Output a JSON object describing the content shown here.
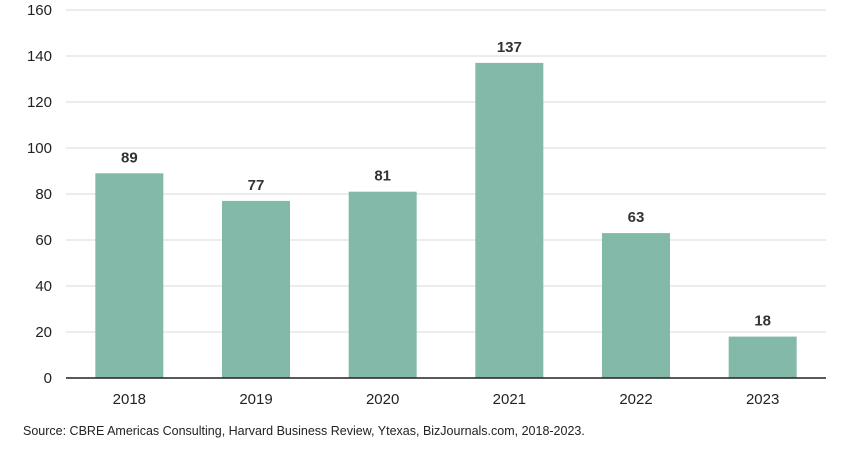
{
  "chart_data": {
    "type": "bar",
    "categories": [
      "2018",
      "2019",
      "2020",
      "2021",
      "2022",
      "2023"
    ],
    "values": [
      89,
      77,
      81,
      137,
      63,
      18
    ],
    "data_labels": [
      "89",
      "77",
      "81",
      "137",
      "63",
      "18"
    ],
    "title": "",
    "xlabel": "",
    "ylabel": "",
    "ylim": [
      0,
      160
    ],
    "yticks": [
      "0",
      "20",
      "40",
      "60",
      "80",
      "100",
      "120",
      "140",
      "160"
    ],
    "grid": true,
    "legend": "none",
    "bar_color": "#82B9A9",
    "grid_color": "#D9D9D9",
    "axis_color": "#222222"
  },
  "footer": {
    "source": "Source: CBRE Americas Consulting, Harvard Business Review, Ytexas, BizJournals.com, 2018-2023."
  }
}
